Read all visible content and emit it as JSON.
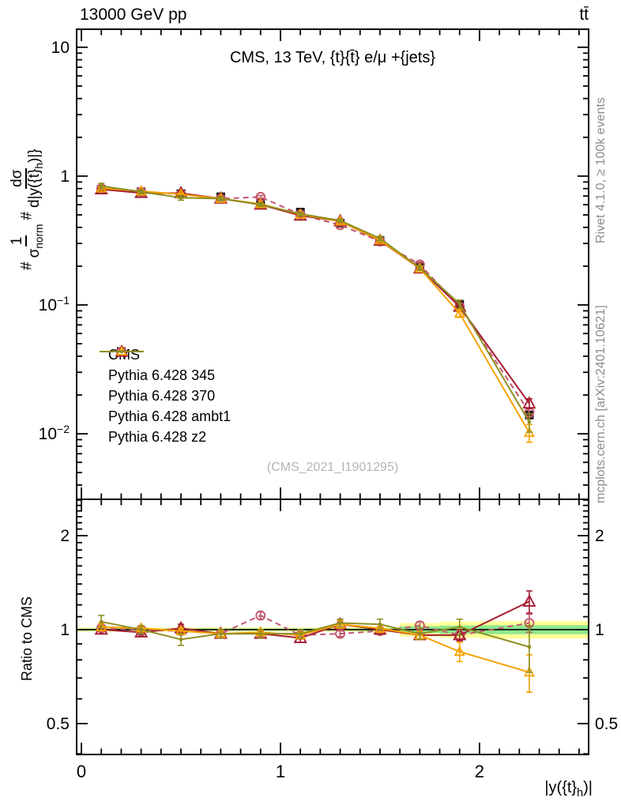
{
  "header": {
    "left_title": "13000 GeV pp",
    "right_title": "tt̄"
  },
  "side_notes": {
    "top": "Rivet 4.1.0, ≥ 100k events",
    "bottom": "mcplots.cern.ch [arXiv:2401.10621]"
  },
  "watermark": "(CMS_2021_I1901295)",
  "axes": {
    "ylabel_main": {
      "hash1": "#",
      "num1": "1",
      "den1": "σ",
      "den1_sub": "norm",
      "hash2": "#",
      "num2": "dσ",
      "den2": "d|y({t}",
      "den2_sub": "h",
      "den2_end": ")|}"
    },
    "ylabel_ratio": "Ratio to CMS",
    "xlabel": {
      "a": "|y({t}",
      "sub": "h",
      "b": ")|"
    }
  },
  "chart_data": {
    "type": "line",
    "title": "CMS, 13 TeV, {t}{t̄} e/μ +{jets}",
    "xlabel": "|y({t}_h)|",
    "ylabel_top": "#1/σ_norm #dσ/d|y({t}_h)|}",
    "ylabel_bottom": "Ratio to CMS",
    "x_axis": {
      "min": -0.024,
      "max": 2.548,
      "majors": [
        0,
        1,
        2
      ],
      "major_labels": [
        "0",
        "1",
        "2"
      ],
      "minor_step": 0.1,
      "minor_min": 0,
      "minor_max": 2.5
    },
    "y_main": {
      "scale": "log",
      "min": 0.0031,
      "max": 13.8,
      "majors": [
        {
          "v": 10,
          "label": "10"
        },
        {
          "v": 1,
          "label": "1"
        },
        {
          "v": 0.1,
          "label": {
            "base": "10",
            "exp": "−1"
          }
        },
        {
          "v": 0.01,
          "label": {
            "base": "10",
            "exp": "−2"
          }
        }
      ]
    },
    "y_ratio": {
      "scale": "log",
      "min": 0.398,
      "max": 2.615,
      "majors": [
        {
          "v": 2,
          "label": "2"
        },
        {
          "v": 1,
          "label": "1"
        },
        {
          "v": 0.5,
          "label": "0.5"
        }
      ],
      "minor_min": 0.4,
      "minor_max": 2.6,
      "minor_step": 0.1
    },
    "bin_edges": [
      0,
      0.2,
      0.4,
      0.6,
      0.8,
      1.0,
      1.2,
      1.4,
      1.6,
      1.8,
      2.0,
      2.5
    ],
    "x": [
      0.1,
      0.3,
      0.5,
      0.7,
      0.9,
      1.1,
      1.3,
      1.5,
      1.7,
      1.9,
      2.25
    ],
    "series": [
      {
        "name": "CMS",
        "role": "data",
        "color": "#151515",
        "line": "none",
        "marker": "square",
        "values": [
          0.79,
          0.755,
          0.73,
          0.69,
          0.62,
          0.525,
          0.43,
          0.315,
          0.2,
          0.101,
          0.014
        ],
        "err": [
          0.012,
          0.011,
          0.011,
          0.01,
          0.009,
          0.008,
          0.007,
          0.005,
          0.004,
          0.003,
          0.0009
        ]
      },
      {
        "name": "Pythia 6.428 345",
        "role": "mc",
        "color": "#c4586e",
        "line": "dashed",
        "marker": "circle",
        "values": [
          0.798,
          0.755,
          0.723,
          0.669,
          0.688,
          0.504,
          0.417,
          0.312,
          0.206,
          0.097,
          0.0147
        ],
        "err": [
          0.016,
          0.015,
          0.015,
          0.014,
          0.019,
          0.011,
          0.009,
          0.006,
          0.006,
          0.004,
          0.0012
        ],
        "ratio": [
          1.01,
          1.0,
          0.99,
          0.97,
          1.11,
          0.96,
          0.97,
          0.99,
          1.03,
          0.96,
          1.05
        ],
        "ratio_err": [
          0.02,
          0.02,
          0.02,
          0.02,
          0.03,
          0.02,
          0.02,
          0.02,
          0.03,
          0.04,
          0.07
        ]
      },
      {
        "name": "Pythia 6.428 370",
        "role": "mc",
        "color": "#a51d33",
        "line": "solid",
        "marker": "triangle",
        "values": [
          0.79,
          0.74,
          0.737,
          0.669,
          0.601,
          0.494,
          0.447,
          0.315,
          0.192,
          0.097,
          0.0172
        ],
        "err": [
          0.024,
          0.015,
          0.022,
          0.014,
          0.012,
          0.016,
          0.013,
          0.006,
          0.006,
          0.004,
          0.0015
        ],
        "ratio": [
          1.0,
          0.98,
          1.01,
          0.97,
          0.97,
          0.94,
          1.04,
          1.0,
          0.96,
          0.96,
          1.23
        ],
        "ratio_err": [
          0.03,
          0.02,
          0.03,
          0.02,
          0.02,
          0.03,
          0.03,
          0.02,
          0.03,
          0.04,
          0.1
        ]
      },
      {
        "name": "Pythia 6.428 ambt1",
        "role": "mc",
        "color": "#f5a300",
        "line": "solid",
        "marker": "triangle-small",
        "values": [
          0.806,
          0.763,
          0.723,
          0.669,
          0.608,
          0.504,
          0.447,
          0.318,
          0.192,
          0.086,
          0.0102
        ],
        "err": [
          0.024,
          0.015,
          0.015,
          0.014,
          0.012,
          0.011,
          0.013,
          0.009,
          0.006,
          0.006,
          0.0016
        ],
        "ratio": [
          1.02,
          1.01,
          0.99,
          0.97,
          0.98,
          0.96,
          1.04,
          1.01,
          0.96,
          0.85,
          0.73
        ],
        "ratio_err": [
          0.03,
          0.02,
          0.02,
          0.02,
          0.02,
          0.02,
          0.03,
          0.03,
          0.03,
          0.06,
          0.1
        ]
      },
      {
        "name": "Pythia 6.428 z2",
        "role": "mc",
        "color": "#8e8e22",
        "line": "solid",
        "marker": "dot",
        "values": [
          0.837,
          0.755,
          0.679,
          0.669,
          0.601,
          0.509,
          0.452,
          0.328,
          0.194,
          0.102,
          0.0123
        ],
        "err": [
          0.04,
          0.023,
          0.029,
          0.021,
          0.019,
          0.016,
          0.013,
          0.013,
          0.008,
          0.007,
          0.002
        ],
        "ratio": [
          1.06,
          1.0,
          0.93,
          0.97,
          0.97,
          0.97,
          1.05,
          1.04,
          0.97,
          1.02,
          0.88
        ],
        "ratio_err": [
          0.05,
          0.03,
          0.04,
          0.03,
          0.03,
          0.03,
          0.03,
          0.04,
          0.04,
          0.06,
          0.15
        ]
      }
    ],
    "band": {
      "description": "CMS uncertainty band around ratio=1",
      "yellow_half_width": [
        0.015,
        0.015,
        0.015,
        0.015,
        0.015,
        0.015,
        0.015,
        0.02,
        0.05,
        0.06,
        0.065
      ],
      "green_half_width": [
        0.008,
        0.008,
        0.008,
        0.008,
        0.008,
        0.008,
        0.008,
        0.01,
        0.025,
        0.03,
        0.033
      ],
      "yellow_color": "#ffff99",
      "green_color": "#8ce98c"
    },
    "legend_position": "middle-left",
    "grid": false
  },
  "colors": {
    "frame": "#000000",
    "cms_marker": "#151515",
    "pythia_345": "#c4586e",
    "pythia_370": "#a51d33",
    "pythia_ambt1": "#f5a300",
    "pythia_z2": "#8e8e22",
    "band_yellow": "#ffff99",
    "band_green": "#8ce98c",
    "watermark": "#b5b5b5",
    "side_note": "#8c8c8c"
  }
}
